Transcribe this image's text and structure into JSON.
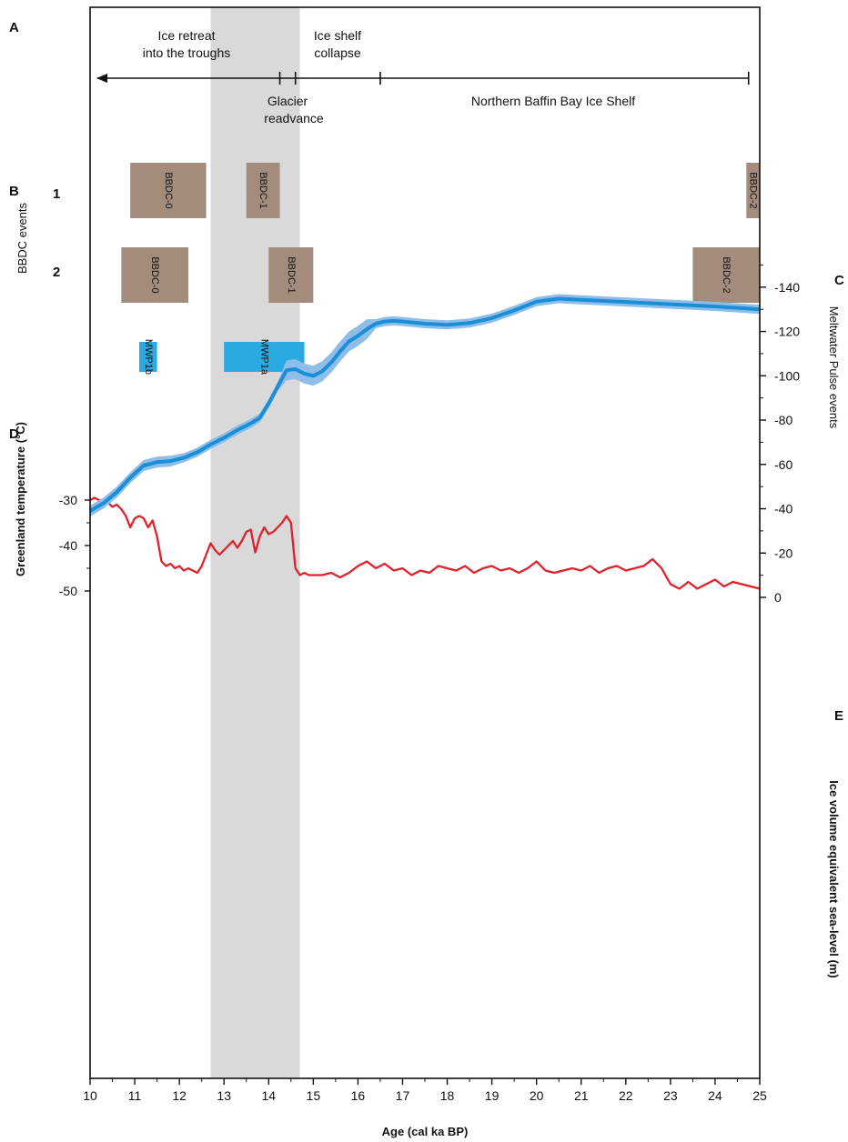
{
  "panel_letters": {
    "a": "A",
    "b": "B",
    "c": "C",
    "d": "D",
    "e": "E"
  },
  "bbdc_rows": {
    "row1": "1",
    "row2": "2"
  },
  "labels": {
    "bbdc_events": "BBDC events",
    "meltwater_events": "Meltwater Pulse events",
    "greenland_temp": "Greenland temperature (°C)",
    "ice_volume": "Ice volume equivalent sea-level (m)",
    "age": "Age (cal ka BP)"
  },
  "phases": {
    "retreat_l1": "Ice retreat",
    "retreat_l2": "into the troughs",
    "collapse_l1": "Ice shelf",
    "collapse_l2": "collapse",
    "readvance_l1": "Glacier",
    "readvance_l2": "readvance",
    "northern": "Northern Baffin Bay Ice Shelf"
  },
  "colors": {
    "bbdc": "#a38c7c",
    "mwp": "#29abe2",
    "temperature": "#e0202a",
    "sealevel_line": "#1a8fd6",
    "sealevel_band": "#8dbde8",
    "shade": "#d9d9d9",
    "axis": "#111111"
  },
  "chart_data": {
    "type": "line",
    "x_axis": {
      "label": "Age (cal ka BP)",
      "range": [
        10,
        25
      ],
      "ticks": [
        10,
        11,
        12,
        13,
        14,
        15,
        16,
        17,
        18,
        19,
        20,
        21,
        22,
        23,
        24,
        25
      ]
    },
    "shaded_interval": [
      12.7,
      14.7
    ],
    "events": {
      "phase_markers": [
        14.25,
        14.6,
        16.5
      ],
      "bbdc_row1": [
        {
          "name": "BBDC-0",
          "start": 10.9,
          "end": 12.6
        },
        {
          "name": "BBDC-1",
          "start": 13.5,
          "end": 14.25
        },
        {
          "name": "BBDC-2",
          "start": 24.7,
          "end": 25.0
        }
      ],
      "bbdc_row2": [
        {
          "name": "BBDC-0",
          "start": 10.7,
          "end": 12.2
        },
        {
          "name": "BBDC-1",
          "start": 14.0,
          "end": 15.0
        },
        {
          "name": "BBDC-2",
          "start": 23.5,
          "end": 25.0
        }
      ],
      "meltwater_pulses": [
        {
          "name": "MWP1b",
          "start": 11.1,
          "end": 11.5
        },
        {
          "name": "MWP1a",
          "start": 13.0,
          "end": 14.8
        }
      ]
    },
    "temperature": {
      "ylabel": "Greenland temperature (°C)",
      "ticks": [
        -30,
        -40,
        -50
      ],
      "ylim": [
        -50,
        -30
      ],
      "x": [
        10.0,
        10.1,
        10.2,
        10.3,
        10.4,
        10.5,
        10.6,
        10.7,
        10.8,
        10.9,
        11.0,
        11.1,
        11.2,
        11.3,
        11.4,
        11.5,
        11.6,
        11.7,
        11.8,
        11.9,
        12.0,
        12.1,
        12.2,
        12.3,
        12.4,
        12.5,
        12.6,
        12.7,
        12.8,
        12.9,
        13.0,
        13.1,
        13.2,
        13.3,
        13.4,
        13.5,
        13.6,
        13.7,
        13.8,
        13.9,
        14.0,
        14.1,
        14.2,
        14.3,
        14.4,
        14.5,
        14.6,
        14.7,
        14.8,
        14.9,
        15.0,
        15.2,
        15.4,
        15.6,
        15.8,
        16.0,
        16.2,
        16.4,
        16.6,
        16.8,
        17.0,
        17.2,
        17.4,
        17.6,
        17.8,
        18.0,
        18.2,
        18.4,
        18.6,
        18.8,
        19.0,
        19.2,
        19.4,
        19.6,
        19.8,
        20.0,
        20.2,
        20.4,
        20.6,
        20.8,
        21.0,
        21.2,
        21.4,
        21.6,
        21.8,
        22.0,
        22.2,
        22.4,
        22.6,
        22.8,
        23.0,
        23.2,
        23.4,
        23.6,
        23.8,
        24.0,
        24.2,
        24.4,
        24.6,
        24.8,
        25.0
      ],
      "y": [
        -30,
        -29.5,
        -30,
        -31,
        -30.5,
        -31.5,
        -31,
        -32,
        -33.5,
        -36,
        -34,
        -33.5,
        -34,
        -36,
        -34.5,
        -38,
        -43.5,
        -44.5,
        -44,
        -45,
        -44.5,
        -45.5,
        -45,
        -45.5,
        -46,
        -44.5,
        -42,
        -39.5,
        -41,
        -42,
        -41,
        -40,
        -39,
        -40.5,
        -39,
        -37,
        -36.5,
        -41.5,
        -38,
        -36,
        -37.5,
        -37,
        -36,
        -35,
        -33.5,
        -35,
        -45,
        -46.5,
        -46,
        -46.5,
        -46.5,
        -46.5,
        -46,
        -47,
        -46,
        -44.5,
        -43.5,
        -45,
        -44,
        -45.5,
        -45,
        -46.5,
        -45.5,
        -46,
        -44.5,
        -45,
        -45.5,
        -44.5,
        -46,
        -45,
        -44.5,
        -45.5,
        -45,
        -46,
        -45,
        -43.5,
        -45.5,
        -46,
        -45.5,
        -45,
        -45.5,
        -44.5,
        -46,
        -45,
        -44.5,
        -45.5,
        -45,
        -44.5,
        -43,
        -45,
        -48.5,
        -49.5,
        -48,
        -49.5,
        -48.5,
        -47.5,
        -49,
        -48,
        -48.5,
        -49,
        -49.5
      ]
    },
    "sea_level": {
      "ylabel": "Ice volume equivalent sea-level (m)",
      "ticks": [
        0,
        -20,
        -40,
        -60,
        -80,
        -100,
        -120,
        -140
      ],
      "ylim": [
        -150,
        0
      ],
      "x": [
        10.0,
        10.3,
        10.6,
        10.9,
        11.2,
        11.5,
        11.8,
        12.1,
        12.4,
        12.7,
        13.0,
        13.3,
        13.6,
        13.8,
        14.0,
        14.2,
        14.4,
        14.6,
        14.8,
        15.0,
        15.2,
        15.4,
        15.6,
        15.8,
        16.0,
        16.2,
        16.4,
        16.6,
        16.8,
        17.0,
        17.5,
        18.0,
        18.5,
        19.0,
        19.5,
        20.0,
        20.5,
        21.0,
        22.0,
        23.0,
        24.0,
        25.0
      ],
      "y": [
        -39,
        -42.5,
        -47.5,
        -54,
        -59.5,
        -61,
        -61.5,
        -63,
        -65.5,
        -69,
        -72,
        -75.5,
        -78.5,
        -81,
        -87.5,
        -95,
        -102.5,
        -103,
        -101,
        -100,
        -102,
        -106,
        -111,
        -115.5,
        -118,
        -121,
        -123.5,
        -124.5,
        -124.8,
        -124.5,
        -123.5,
        -123,
        -123.8,
        -126,
        -129.5,
        -133.5,
        -134.8,
        -134.3,
        -133.3,
        -132.3,
        -131.3,
        -130
      ]
    }
  }
}
